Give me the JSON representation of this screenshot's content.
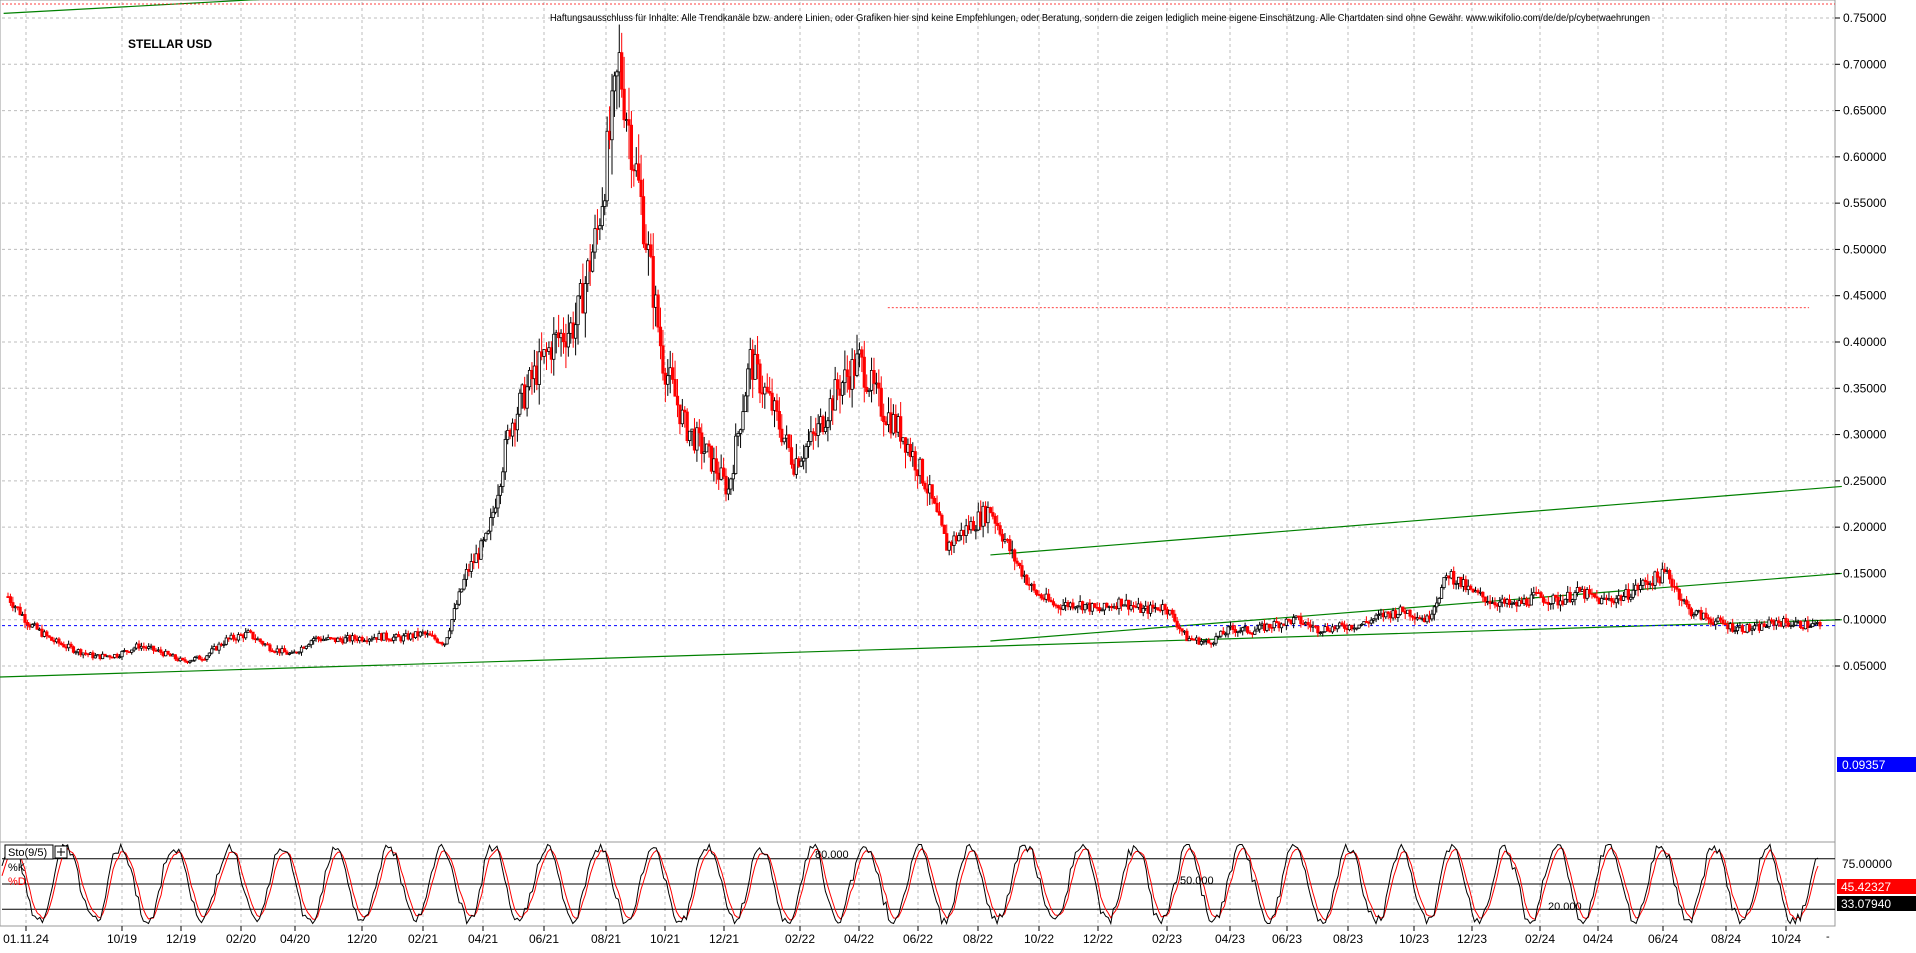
{
  "chart_data": [
    {
      "type": "candlestick",
      "title": "STELLAR USD",
      "disclaimer": "Haftungsausschluss für Inhalte: Alle Trendkanäle bzw. andere Linien, oder Grafiken hier sind keine Empfehlungen, oder Beratung, sondern die zeigen lediglich meine eigene Einschätzung. Alle Chartdaten sind ohne Gewähr. www.wikifolio.com/de/de/p/cyberwaehrungen",
      "ylim": [
        0.025,
        0.77
      ],
      "yticks": [
        "0.75000",
        "0.70000",
        "0.65000",
        "0.60000",
        "0.55000",
        "0.50000",
        "0.45000",
        "0.40000",
        "0.35000",
        "0.30000",
        "0.25000",
        "0.20000",
        "0.15000",
        "0.10000",
        "0.05000"
      ],
      "ytick_values": [
        0.75,
        0.7,
        0.65,
        0.6,
        0.55,
        0.5,
        0.45,
        0.4,
        0.35,
        0.3,
        0.25,
        0.2,
        0.15,
        0.1,
        0.05
      ],
      "x_labels": [
        "01.11.24",
        "10/19",
        "12/19",
        "02/20",
        "04/20",
        "12/20",
        "02/21",
        "04/21",
        "06/21",
        "08/21",
        "10/21",
        "12/21",
        "02/22",
        "04/22",
        "06/22",
        "08/22",
        "10/22",
        "12/22",
        "02/23",
        "04/23",
        "06/23",
        "08/23",
        "10/23",
        "12/23",
        "02/24",
        "04/24",
        "06/24",
        "08/24",
        "10/24"
      ],
      "x_label_index": [
        0,
        3,
        6,
        8,
        10,
        14,
        16,
        18,
        20,
        22,
        24,
        26,
        28,
        30,
        32,
        34,
        36,
        38,
        40,
        42,
        44,
        46,
        48,
        50,
        52,
        54,
        56,
        58,
        60
      ],
      "grid": true,
      "last_price": "0.09357",
      "last_price_value": 0.09357,
      "colors": {
        "up": "#000000",
        "down": "#ff0000",
        "trendline": "#008000",
        "price_line": "#0000ff",
        "badge": "#0000ff",
        "resistance": "#ff0000"
      },
      "close_by_month": [
        0.125,
        0.095,
        0.078,
        0.068,
        0.06,
        0.062,
        0.072,
        0.065,
        0.055,
        0.06,
        0.078,
        0.085,
        0.07,
        0.062,
        0.08,
        0.078,
        0.08,
        0.082,
        0.08,
        0.085,
        0.075,
        0.15,
        0.19,
        0.31,
        0.36,
        0.4,
        0.42,
        0.52,
        0.7,
        0.55,
        0.38,
        0.31,
        0.28,
        0.24,
        0.38,
        0.33,
        0.27,
        0.3,
        0.35,
        0.38,
        0.33,
        0.3,
        0.25,
        0.18,
        0.2,
        0.22,
        0.17,
        0.13,
        0.115,
        0.118,
        0.11,
        0.12,
        0.11,
        0.115,
        0.08,
        0.075,
        0.09,
        0.088,
        0.095,
        0.1,
        0.09,
        0.092,
        0.095,
        0.105,
        0.11,
        0.1,
        0.15,
        0.13,
        0.12,
        0.115,
        0.125,
        0.12,
        0.13,
        0.12,
        0.125,
        0.14,
        0.15,
        0.11,
        0.1,
        0.092,
        0.09,
        0.098,
        0.095,
        0.094
      ],
      "trendlines": [
        {
          "from": [
            -0.2,
            0.755
          ],
          "to": [
            11.5,
            0.77
          ]
        },
        {
          "from": [
            -0.5,
            0.038
          ],
          "to": [
            84,
            0.1
          ]
        },
        {
          "from": [
            45,
            0.077
          ],
          "to": [
            84,
            0.15
          ]
        },
        {
          "from": [
            45,
            0.17
          ],
          "to": [
            84,
            0.244
          ]
        }
      ],
      "resistance": {
        "from": [
          40.3,
          0.437
        ],
        "to": [
          82.5,
          0.437
        ]
      }
    },
    {
      "type": "line",
      "title": "Sto(9/5)",
      "series": [
        {
          "name": "%K",
          "color": "#000000"
        },
        {
          "name": "%D",
          "color": "#ff0000"
        }
      ],
      "levels": [
        "80.000",
        "50.000",
        "20.000"
      ],
      "level_values": [
        80,
        50,
        20
      ],
      "yticks": [
        "75.00000"
      ],
      "ytick_values": [
        75
      ],
      "ylim": [
        0,
        100
      ],
      "last_values": {
        "k": "45.42327",
        "d": "33.07940"
      },
      "last_values_num": {
        "k": 45.42327,
        "d": 33.0794
      }
    }
  ]
}
